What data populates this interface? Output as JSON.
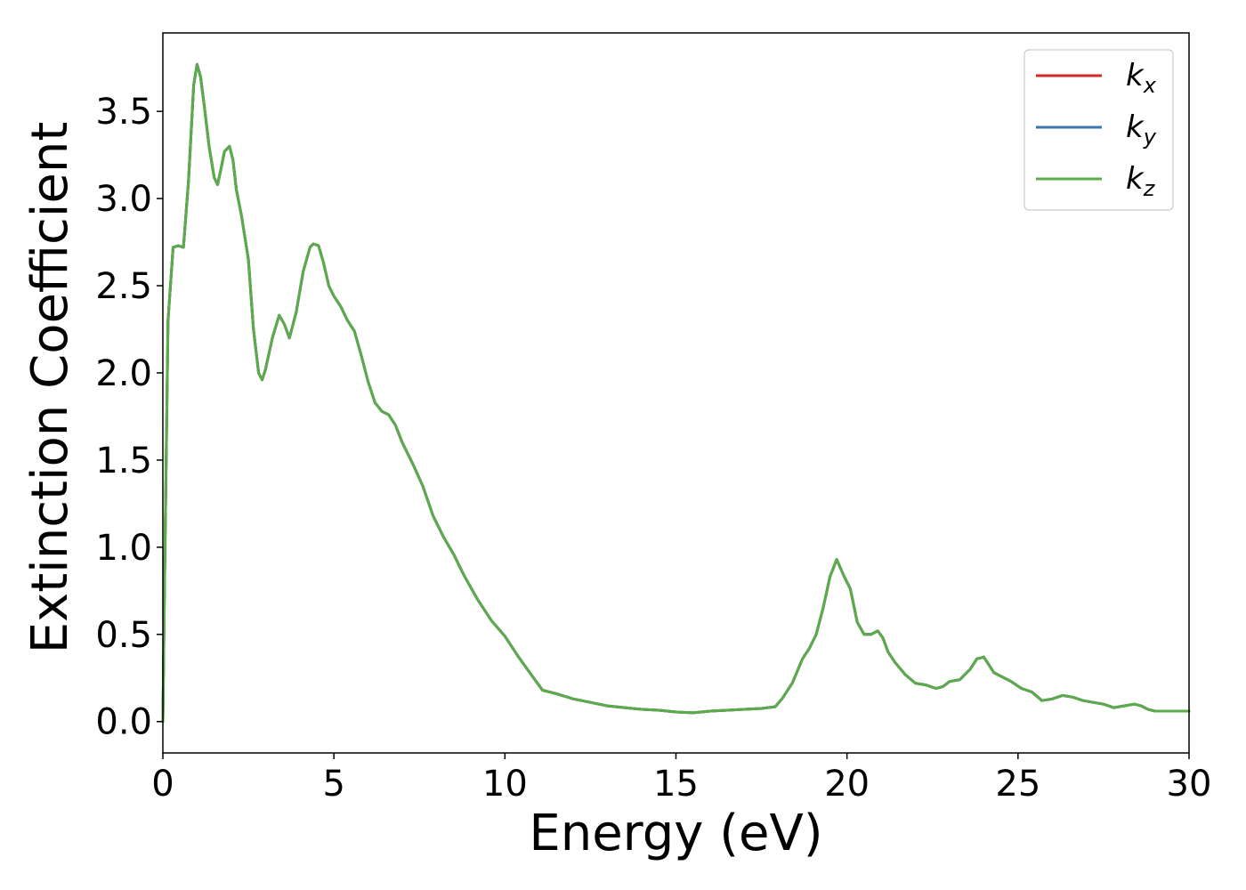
{
  "chart_data": {
    "type": "line",
    "title": "",
    "xlabel": "Energy (eV)",
    "ylabel": "Extinction Coefficient",
    "xlim": [
      0,
      30
    ],
    "ylim": [
      -0.18,
      3.95
    ],
    "xticks": [
      0,
      5,
      10,
      15,
      20,
      25,
      30
    ],
    "xtick_labels": [
      "0",
      "5",
      "10",
      "15",
      "20",
      "25",
      "30"
    ],
    "yticks": [
      0.0,
      0.5,
      1.0,
      1.5,
      2.0,
      2.5,
      3.0,
      3.5
    ],
    "ytick_labels": [
      "0.0",
      "0.5",
      "1.0",
      "1.5",
      "2.0",
      "2.5",
      "3.0",
      "3.5"
    ],
    "grid": false,
    "legend_position": "top-right",
    "legend_entries": [
      {
        "base": "k",
        "sub": "x",
        "color": "#d62728"
      },
      {
        "base": "k",
        "sub": "y",
        "color": "#3a77b3"
      },
      {
        "base": "k",
        "sub": "z",
        "color": "#5aac4a"
      }
    ],
    "x": [
      0.0,
      0.05,
      0.15,
      0.3,
      0.45,
      0.6,
      0.75,
      0.9,
      1.0,
      1.1,
      1.2,
      1.35,
      1.5,
      1.6,
      1.7,
      1.8,
      1.95,
      2.05,
      2.15,
      2.3,
      2.5,
      2.65,
      2.8,
      2.9,
      3.0,
      3.2,
      3.4,
      3.55,
      3.7,
      3.9,
      4.1,
      4.3,
      4.4,
      4.55,
      4.7,
      4.85,
      5.0,
      5.2,
      5.4,
      5.6,
      5.8,
      6.0,
      6.2,
      6.4,
      6.6,
      6.8,
      7.0,
      7.3,
      7.6,
      7.9,
      8.2,
      8.5,
      8.8,
      9.2,
      9.6,
      10.0,
      10.4,
      10.8,
      11.1,
      11.5,
      12.0,
      12.5,
      13.0,
      13.5,
      14.0,
      14.5,
      15.0,
      15.5,
      16.0,
      16.5,
      17.0,
      17.5,
      17.9,
      18.1,
      18.4,
      18.7,
      18.9,
      19.1,
      19.3,
      19.5,
      19.7,
      19.9,
      20.1,
      20.3,
      20.5,
      20.7,
      20.9,
      21.05,
      21.2,
      21.4,
      21.7,
      22.0,
      22.3,
      22.6,
      22.8,
      23.0,
      23.3,
      23.6,
      23.8,
      24.0,
      24.1,
      24.3,
      24.5,
      24.8,
      25.1,
      25.4,
      25.7,
      26.0,
      26.3,
      26.6,
      26.9,
      27.2,
      27.5,
      27.8,
      28.1,
      28.4,
      28.6,
      28.8,
      29.0,
      29.3,
      29.6,
      30.0
    ],
    "series": [
      {
        "name": "k_x",
        "color": "#d62728",
        "values": [
          0.0,
          0.8,
          2.3,
          2.72,
          2.73,
          2.72,
          3.1,
          3.65,
          3.77,
          3.7,
          3.55,
          3.3,
          3.12,
          3.08,
          3.17,
          3.27,
          3.3,
          3.22,
          3.05,
          2.9,
          2.65,
          2.25,
          2.0,
          1.96,
          2.02,
          2.2,
          2.33,
          2.28,
          2.2,
          2.35,
          2.58,
          2.72,
          2.74,
          2.73,
          2.63,
          2.5,
          2.44,
          2.38,
          2.3,
          2.24,
          2.1,
          1.95,
          1.83,
          1.78,
          1.76,
          1.7,
          1.6,
          1.48,
          1.35,
          1.18,
          1.06,
          0.96,
          0.84,
          0.7,
          0.58,
          0.49,
          0.37,
          0.26,
          0.18,
          0.16,
          0.13,
          0.11,
          0.09,
          0.08,
          0.07,
          0.065,
          0.055,
          0.05,
          0.06,
          0.065,
          0.07,
          0.075,
          0.085,
          0.13,
          0.22,
          0.36,
          0.42,
          0.5,
          0.65,
          0.83,
          0.93,
          0.84,
          0.76,
          0.57,
          0.5,
          0.5,
          0.52,
          0.48,
          0.4,
          0.34,
          0.27,
          0.22,
          0.21,
          0.19,
          0.2,
          0.23,
          0.24,
          0.3,
          0.36,
          0.37,
          0.34,
          0.28,
          0.26,
          0.23,
          0.19,
          0.17,
          0.12,
          0.13,
          0.15,
          0.14,
          0.12,
          0.11,
          0.1,
          0.08,
          0.09,
          0.1,
          0.09,
          0.07,
          0.06,
          0.06,
          0.06,
          0.06
        ]
      },
      {
        "name": "k_y",
        "color": "#3a77b3",
        "values": [
          0.0,
          0.8,
          2.3,
          2.72,
          2.73,
          2.72,
          3.1,
          3.65,
          3.77,
          3.7,
          3.55,
          3.3,
          3.12,
          3.08,
          3.17,
          3.27,
          3.3,
          3.22,
          3.05,
          2.9,
          2.65,
          2.25,
          2.0,
          1.96,
          2.02,
          2.2,
          2.33,
          2.28,
          2.2,
          2.35,
          2.58,
          2.72,
          2.74,
          2.73,
          2.63,
          2.5,
          2.44,
          2.38,
          2.3,
          2.24,
          2.1,
          1.95,
          1.83,
          1.78,
          1.76,
          1.7,
          1.6,
          1.48,
          1.35,
          1.18,
          1.06,
          0.96,
          0.84,
          0.7,
          0.58,
          0.49,
          0.37,
          0.26,
          0.18,
          0.16,
          0.13,
          0.11,
          0.09,
          0.08,
          0.07,
          0.065,
          0.055,
          0.05,
          0.06,
          0.065,
          0.07,
          0.075,
          0.085,
          0.13,
          0.22,
          0.36,
          0.42,
          0.5,
          0.65,
          0.83,
          0.93,
          0.84,
          0.76,
          0.57,
          0.5,
          0.5,
          0.52,
          0.48,
          0.4,
          0.34,
          0.27,
          0.22,
          0.21,
          0.19,
          0.2,
          0.23,
          0.24,
          0.3,
          0.36,
          0.37,
          0.34,
          0.28,
          0.26,
          0.23,
          0.19,
          0.17,
          0.12,
          0.13,
          0.15,
          0.14,
          0.12,
          0.11,
          0.1,
          0.08,
          0.09,
          0.1,
          0.09,
          0.07,
          0.06,
          0.06,
          0.06,
          0.06
        ]
      },
      {
        "name": "k_z",
        "color": "#5aac4a",
        "values": [
          0.0,
          0.8,
          2.3,
          2.72,
          2.73,
          2.72,
          3.1,
          3.65,
          3.77,
          3.7,
          3.55,
          3.3,
          3.12,
          3.08,
          3.17,
          3.27,
          3.3,
          3.22,
          3.05,
          2.9,
          2.65,
          2.25,
          2.0,
          1.96,
          2.02,
          2.2,
          2.33,
          2.28,
          2.2,
          2.35,
          2.58,
          2.72,
          2.74,
          2.73,
          2.63,
          2.5,
          2.44,
          2.38,
          2.3,
          2.24,
          2.1,
          1.95,
          1.83,
          1.78,
          1.76,
          1.7,
          1.6,
          1.48,
          1.35,
          1.18,
          1.06,
          0.96,
          0.84,
          0.7,
          0.58,
          0.49,
          0.37,
          0.26,
          0.18,
          0.16,
          0.13,
          0.11,
          0.09,
          0.08,
          0.07,
          0.065,
          0.055,
          0.05,
          0.06,
          0.065,
          0.07,
          0.075,
          0.085,
          0.13,
          0.22,
          0.36,
          0.42,
          0.5,
          0.65,
          0.83,
          0.93,
          0.84,
          0.76,
          0.57,
          0.5,
          0.5,
          0.52,
          0.48,
          0.4,
          0.34,
          0.27,
          0.22,
          0.21,
          0.19,
          0.2,
          0.23,
          0.24,
          0.3,
          0.36,
          0.37,
          0.34,
          0.28,
          0.26,
          0.23,
          0.19,
          0.17,
          0.12,
          0.13,
          0.15,
          0.14,
          0.12,
          0.11,
          0.1,
          0.08,
          0.09,
          0.1,
          0.09,
          0.07,
          0.06,
          0.06,
          0.06,
          0.06
        ]
      }
    ]
  }
}
